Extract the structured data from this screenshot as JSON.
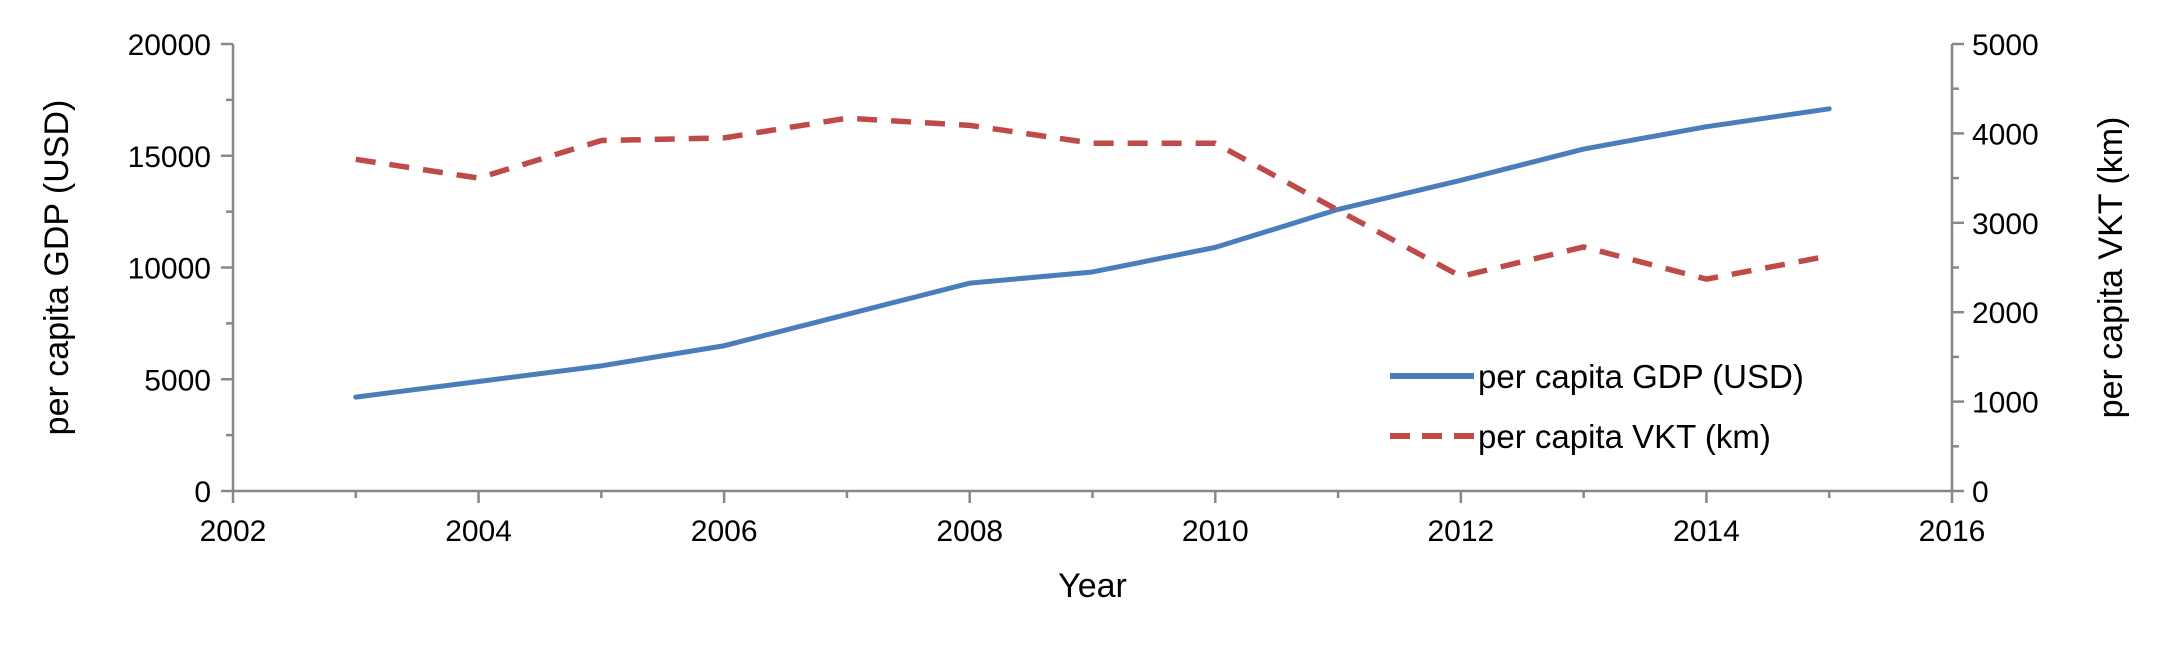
{
  "chart_data": {
    "type": "line",
    "title": "",
    "xlabel": "Year",
    "ylabel": "per capita GDP (USD)",
    "y2label": "per capita VKT (km)",
    "xlim": [
      2002,
      2016
    ],
    "ylim": [
      0,
      20000
    ],
    "y2lim": [
      0,
      5000
    ],
    "x_ticks": [
      2002,
      2004,
      2006,
      2008,
      2010,
      2012,
      2014,
      2016
    ],
    "y_ticks": [
      0,
      5000,
      10000,
      15000,
      20000
    ],
    "y2_ticks": [
      0,
      1000,
      2000,
      3000,
      4000,
      5000
    ],
    "x": [
      2003,
      2004,
      2005,
      2006,
      2007,
      2008,
      2009,
      2010,
      2011,
      2012,
      2013,
      2014,
      2015
    ],
    "series": [
      {
        "name": "per capita GDP (USD)",
        "axis": "left",
        "style": "solid",
        "color": "#4a7ebb",
        "values": [
          4200,
          4900,
          5600,
          6500,
          7900,
          9300,
          9800,
          10900,
          12600,
          13900,
          15300,
          16300,
          17100
        ]
      },
      {
        "name": "per capita VKT (km)",
        "axis": "right",
        "style": "dashed",
        "color": "#be4b48",
        "values": [
          3710,
          3500,
          3920,
          3950,
          4170,
          4090,
          3890,
          3890,
          3140,
          2400,
          2730,
          2370,
          2630
        ]
      }
    ],
    "grid": false,
    "legend": "bottom-right"
  }
}
